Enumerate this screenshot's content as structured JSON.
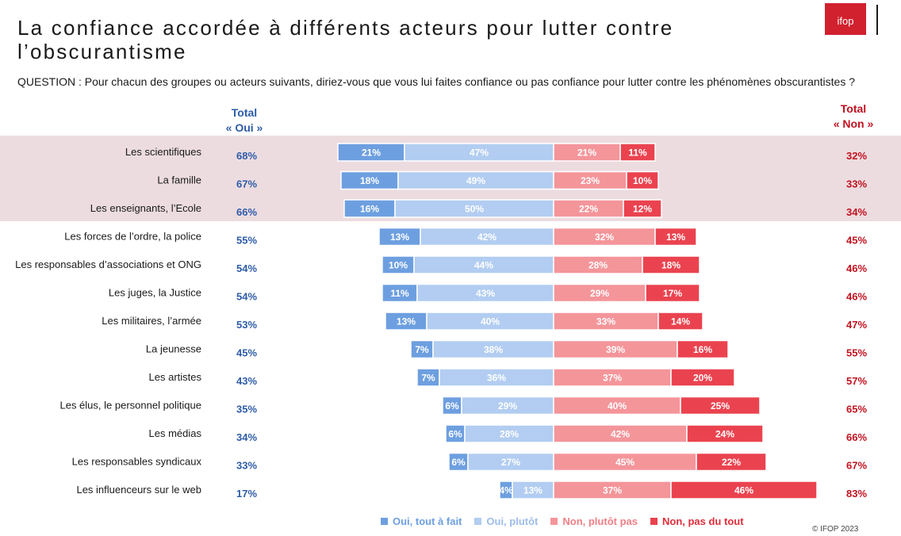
{
  "header": {
    "title": "La confiance accordée à différents acteurs pour lutter contre l’obscurantisme",
    "question": "QUESTION : Pour chacun des groupes ou acteurs suivants, diriez-vous que vous lui faites confiance ou pas confiance pour lutter contre les phénomènes obscurantistes ?",
    "logo_text": "ifop"
  },
  "columns": {
    "oui_header_line1": "Total",
    "oui_header_line2": "« Oui »",
    "non_header_line1": "Total",
    "non_header_line2": "« Non »"
  },
  "colors": {
    "oui_tout_a_fait": "#6d9fe0",
    "oui_plutot": "#b2cdf1",
    "non_plutot_pas": "#f4959a",
    "non_pas_du_tout": "#ea434f",
    "total_oui_text": "#2e5ca8",
    "total_non_text": "#c1121f",
    "highlight_band": "#ecdce0"
  },
  "chart_data": {
    "type": "bar",
    "orientation": "horizontal-diverging-stacked",
    "categories": [
      "Les scientifiques",
      "La famille",
      "Les enseignants, l’Ecole",
      "Les forces de l’ordre, la police",
      "Les responsables d’associations et ONG",
      "Les juges, la Justice",
      "Les militaires, l’armée",
      "La jeunesse",
      "Les artistes",
      "Les élus, le personnel politique",
      "Les médias",
      "Les responsables syndicaux",
      "Les influenceurs sur le web"
    ],
    "series": [
      {
        "name": "Oui, tout à fait",
        "values": [
          21,
          18,
          16,
          13,
          10,
          11,
          13,
          7,
          7,
          6,
          6,
          6,
          4
        ]
      },
      {
        "name": "Oui, plutôt",
        "values": [
          47,
          49,
          50,
          42,
          44,
          43,
          40,
          38,
          36,
          29,
          28,
          27,
          13
        ]
      },
      {
        "name": "Non, plutôt pas",
        "values": [
          21,
          23,
          22,
          32,
          28,
          29,
          33,
          39,
          37,
          40,
          42,
          45,
          37
        ]
      },
      {
        "name": "Non, pas du tout",
        "values": [
          11,
          10,
          12,
          13,
          18,
          17,
          14,
          16,
          20,
          25,
          24,
          22,
          46
        ]
      }
    ],
    "total_oui": [
      68,
      67,
      66,
      55,
      54,
      54,
      53,
      45,
      43,
      35,
      34,
      33,
      17
    ],
    "total_non": [
      32,
      33,
      34,
      45,
      46,
      46,
      47,
      55,
      57,
      65,
      66,
      67,
      83
    ],
    "value_suffix": "%",
    "highlighted_rows": [
      0,
      1,
      2
    ],
    "legend_placement": "bottom",
    "grid": false
  },
  "legend": {
    "items": [
      "Oui, tout à fait",
      "Oui, plutôt",
      "Non, plutôt pas",
      "Non, pas du tout"
    ]
  },
  "footer": {
    "copyright": "© IFOP 2023"
  }
}
